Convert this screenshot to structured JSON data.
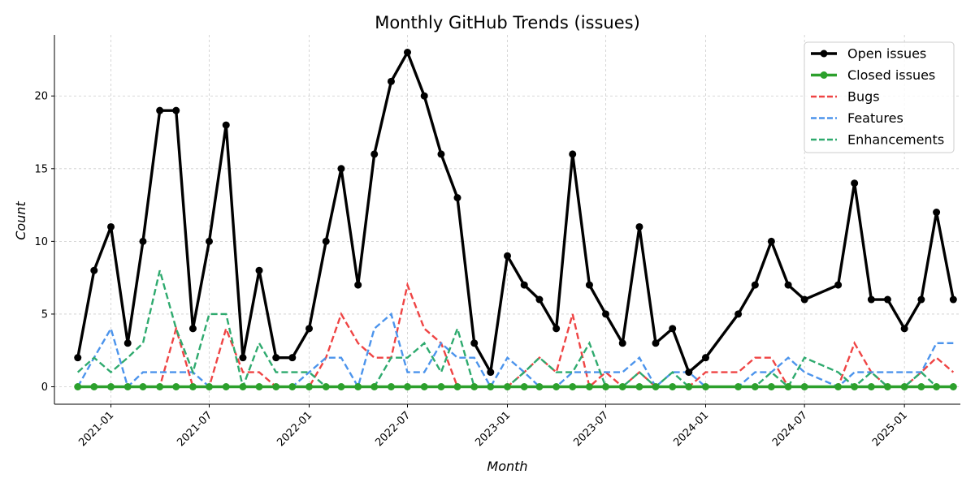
{
  "chart_data": {
    "type": "line",
    "title": "Monthly GitHub Trends (issues)",
    "xlabel": "Month",
    "ylabel": "Count",
    "ylim": [
      -1.2,
      24.2
    ],
    "yticks": [
      0,
      5,
      10,
      15,
      20
    ],
    "xlim": [
      "2020-09-19",
      "2025-04-14"
    ],
    "xticks": [
      "2021-01",
      "2021-07",
      "2022-01",
      "2022-07",
      "2023-01",
      "2023-07",
      "2024-01",
      "2024-07",
      "2025-01"
    ],
    "grid": true,
    "legend_position": "top-right",
    "series": [
      {
        "name": "Open issues",
        "color": "#000000",
        "style": "solid-marker",
        "x": [
          "2020-11",
          "2020-12",
          "2021-01",
          "2021-02",
          "2021-03",
          "2021-04",
          "2021-05",
          "2021-06",
          "2021-07",
          "2021-08",
          "2021-09",
          "2021-10",
          "2021-11",
          "2021-12",
          "2022-01",
          "2022-02",
          "2022-03",
          "2022-04",
          "2022-05",
          "2022-06",
          "2022-07",
          "2022-08",
          "2022-09",
          "2022-10",
          "2022-11",
          "2022-12",
          "2023-01",
          "2023-02",
          "2023-03",
          "2023-04",
          "2023-05",
          "2023-06",
          "2023-07",
          "2023-08",
          "2023-09",
          "2023-10",
          "2023-11",
          "2023-12",
          "2024-01",
          "2024-03",
          "2024-04",
          "2024-05",
          "2024-06",
          "2024-07",
          "2024-09",
          "2024-10",
          "2024-11",
          "2024-12",
          "2025-01",
          "2025-02",
          "2025-03",
          "2025-04"
        ],
        "values": [
          2,
          8,
          11,
          3,
          10,
          19,
          19,
          4,
          10,
          18,
          2,
          8,
          2,
          2,
          4,
          10,
          15,
          7,
          16,
          21,
          23,
          20,
          16,
          13,
          3,
          1,
          9,
          7,
          6,
          4,
          16,
          7,
          5,
          3,
          11,
          3,
          4,
          1,
          2,
          5,
          7,
          10,
          7,
          6,
          7,
          14,
          6,
          6,
          4,
          6,
          12,
          6
        ]
      },
      {
        "name": "Closed issues",
        "color": "#2ca02c",
        "style": "solid-marker",
        "x": [
          "2020-11",
          "2020-12",
          "2021-01",
          "2021-02",
          "2021-03",
          "2021-04",
          "2021-05",
          "2021-06",
          "2021-07",
          "2021-08",
          "2021-09",
          "2021-10",
          "2021-11",
          "2021-12",
          "2022-01",
          "2022-02",
          "2022-03",
          "2022-04",
          "2022-05",
          "2022-06",
          "2022-07",
          "2022-08",
          "2022-09",
          "2022-10",
          "2022-11",
          "2022-12",
          "2023-01",
          "2023-02",
          "2023-03",
          "2023-04",
          "2023-05",
          "2023-06",
          "2023-07",
          "2023-08",
          "2023-09",
          "2023-10",
          "2023-11",
          "2023-12",
          "2024-01",
          "2024-03",
          "2024-04",
          "2024-05",
          "2024-06",
          "2024-07",
          "2024-09",
          "2024-10",
          "2024-11",
          "2024-12",
          "2025-01",
          "2025-02",
          "2025-03",
          "2025-04"
        ],
        "values": [
          0,
          0,
          0,
          0,
          0,
          0,
          0,
          0,
          0,
          0,
          0,
          0,
          0,
          0,
          0,
          0,
          0,
          0,
          0,
          0,
          0,
          0,
          0,
          0,
          0,
          0,
          0,
          0,
          0,
          0,
          0,
          0,
          0,
          0,
          0,
          0,
          0,
          0,
          0,
          0,
          0,
          0,
          0,
          0,
          0,
          0,
          0,
          0,
          0,
          0,
          0,
          0
        ]
      },
      {
        "name": "Bugs",
        "color": "#ef4444",
        "style": "dashed",
        "x": [
          "2020-11",
          "2020-12",
          "2021-01",
          "2021-02",
          "2021-03",
          "2021-04",
          "2021-05",
          "2021-06",
          "2021-07",
          "2021-08",
          "2021-09",
          "2021-10",
          "2021-11",
          "2021-12",
          "2022-01",
          "2022-02",
          "2022-03",
          "2022-04",
          "2022-05",
          "2022-06",
          "2022-07",
          "2022-08",
          "2022-09",
          "2022-10",
          "2022-11",
          "2022-12",
          "2023-01",
          "2023-02",
          "2023-03",
          "2023-04",
          "2023-05",
          "2023-06",
          "2023-07",
          "2023-08",
          "2023-09",
          "2023-10",
          "2023-11",
          "2023-12",
          "2024-01",
          "2024-03",
          "2024-04",
          "2024-05",
          "2024-06",
          "2024-07",
          "2024-09",
          "2024-10",
          "2024-11",
          "2024-12",
          "2025-01",
          "2025-02",
          "2025-03",
          "2025-04"
        ],
        "values": [
          0,
          0,
          0,
          0,
          0,
          0,
          4,
          0,
          0,
          4,
          1,
          1,
          0,
          0,
          0,
          2,
          5,
          3,
          2,
          2,
          7,
          4,
          3,
          0,
          0,
          0,
          0,
          1,
          2,
          1,
          5,
          0,
          1,
          0,
          1,
          0,
          0,
          0,
          1,
          1,
          2,
          2,
          0,
          0,
          0,
          3,
          1,
          0,
          0,
          1,
          2,
          1
        ]
      },
      {
        "name": "Features",
        "color": "#4c94ec",
        "style": "dashed",
        "x": [
          "2020-11",
          "2020-12",
          "2021-01",
          "2021-02",
          "2021-03",
          "2021-04",
          "2021-05",
          "2021-06",
          "2021-07",
          "2021-08",
          "2021-09",
          "2021-10",
          "2021-11",
          "2021-12",
          "2022-01",
          "2022-02",
          "2022-03",
          "2022-04",
          "2022-05",
          "2022-06",
          "2022-07",
          "2022-08",
          "2022-09",
          "2022-10",
          "2022-11",
          "2022-12",
          "2023-01",
          "2023-02",
          "2023-03",
          "2023-04",
          "2023-05",
          "2023-06",
          "2023-07",
          "2023-08",
          "2023-09",
          "2023-10",
          "2023-11",
          "2023-12",
          "2024-01",
          "2024-03",
          "2024-04",
          "2024-05",
          "2024-06",
          "2024-07",
          "2024-09",
          "2024-10",
          "2024-11",
          "2024-12",
          "2025-01",
          "2025-02",
          "2025-03",
          "2025-04"
        ],
        "values": [
          0,
          2,
          4,
          0,
          1,
          1,
          1,
          1,
          0,
          0,
          0,
          0,
          0,
          0,
          1,
          2,
          2,
          0,
          4,
          5,
          1,
          1,
          3,
          2,
          2,
          0,
          2,
          1,
          0,
          0,
          1,
          1,
          1,
          1,
          2,
          0,
          1,
          1,
          0,
          0,
          1,
          1,
          2,
          1,
          0,
          1,
          1,
          1,
          1,
          1,
          3,
          3
        ]
      },
      {
        "name": "Enhancements",
        "color": "#2eaa6e",
        "style": "dashed",
        "x": [
          "2020-11",
          "2020-12",
          "2021-01",
          "2021-02",
          "2021-03",
          "2021-04",
          "2021-05",
          "2021-06",
          "2021-07",
          "2021-08",
          "2021-09",
          "2021-10",
          "2021-11",
          "2021-12",
          "2022-01",
          "2022-02",
          "2022-03",
          "2022-04",
          "2022-05",
          "2022-06",
          "2022-07",
          "2022-08",
          "2022-09",
          "2022-10",
          "2022-11",
          "2022-12",
          "2023-01",
          "2023-02",
          "2023-03",
          "2023-04",
          "2023-05",
          "2023-06",
          "2023-07",
          "2023-08",
          "2023-09",
          "2023-10",
          "2023-11",
          "2023-12",
          "2024-01",
          "2024-03",
          "2024-04",
          "2024-05",
          "2024-06",
          "2024-07",
          "2024-09",
          "2024-10",
          "2024-11",
          "2024-12",
          "2025-01",
          "2025-02",
          "2025-03",
          "2025-04"
        ],
        "values": [
          1,
          2,
          1,
          2,
          3,
          8,
          4,
          1,
          5,
          5,
          0,
          3,
          1,
          1,
          1,
          0,
          0,
          0,
          0,
          2,
          2,
          3,
          1,
          4,
          0,
          0,
          0,
          1,
          2,
          1,
          1,
          3,
          0,
          0,
          1,
          0,
          1,
          0,
          0,
          0,
          0,
          1,
          0,
          2,
          1,
          0,
          1,
          0,
          0,
          1,
          0,
          0
        ]
      }
    ]
  }
}
